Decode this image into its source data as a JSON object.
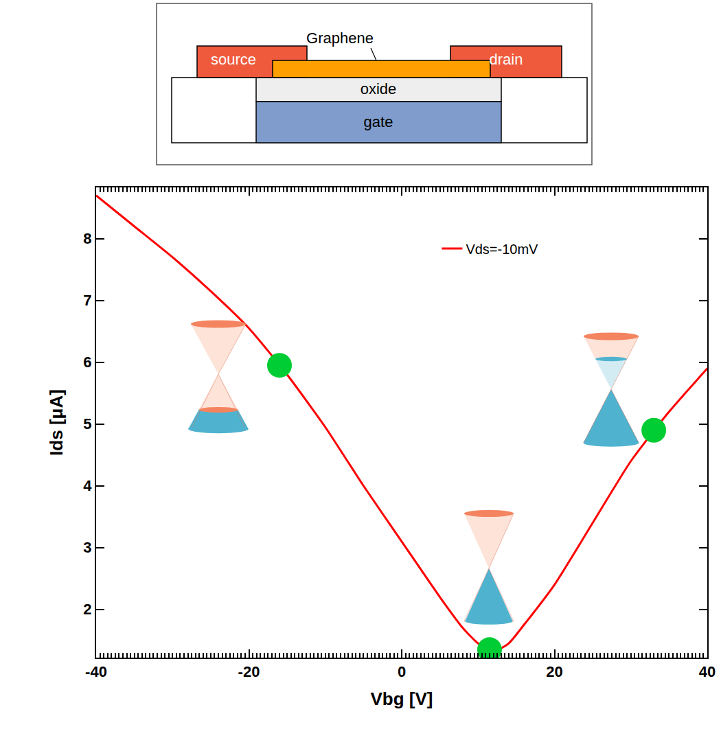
{
  "schematic": {
    "graphene": "Graphene",
    "source": "source",
    "drain": "drain",
    "oxide": "oxide",
    "gate": "gate"
  },
  "chart_data": {
    "type": "line",
    "x_label": "Vbg [V]",
    "y_label": "Ids [μA]",
    "xlim": [
      -40,
      40
    ],
    "ylim": [
      1.22,
      8.83
    ],
    "xticks": [
      -40,
      -20,
      0,
      20,
      40
    ],
    "yticks": [
      2,
      3,
      4,
      5,
      6,
      7,
      8
    ],
    "grid": false,
    "legend": "upper right",
    "series": [
      {
        "name": "Vds=-10mV",
        "color": "#ff0000",
        "line_style": "solid",
        "x": [
          -40,
          -35,
          -30,
          -25,
          -20,
          -15,
          -10,
          -5,
          0,
          5,
          8,
          10,
          12,
          14,
          16,
          20,
          25,
          30,
          35,
          40
        ],
        "values": [
          8.7,
          8.2,
          7.7,
          7.15,
          6.55,
          5.8,
          4.95,
          4.0,
          3.1,
          2.2,
          1.7,
          1.45,
          1.32,
          1.45,
          1.75,
          2.4,
          3.4,
          4.4,
          5.2,
          5.9
        ]
      },
      {
        "type": "scatter",
        "marker": "circle",
        "color": "#00cc33",
        "x": [
          -16,
          11.5,
          33
        ],
        "values": [
          5.95,
          1.35,
          4.9
        ]
      }
    ]
  }
}
